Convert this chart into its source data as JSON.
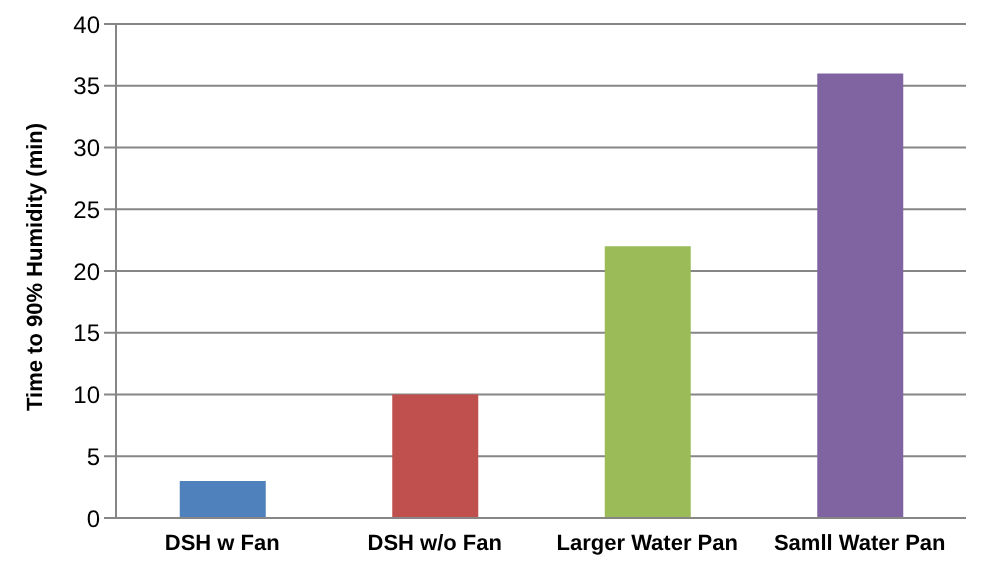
{
  "chart_data": {
    "type": "bar",
    "ylabel": "Time to 90% Humidity (min)",
    "categories": [
      "DSH w Fan",
      "DSH w/o Fan",
      "Larger Water Pan",
      "Samll Water Pan"
    ],
    "values": [
      3,
      10,
      22,
      36
    ],
    "colors": [
      "#4f81bd",
      "#c0504d",
      "#9bbb59",
      "#8064a2"
    ],
    "ylim": [
      0,
      40
    ],
    "yticks": [
      0,
      5,
      10,
      15,
      20,
      25,
      30,
      35,
      40
    ],
    "grid": "y"
  }
}
